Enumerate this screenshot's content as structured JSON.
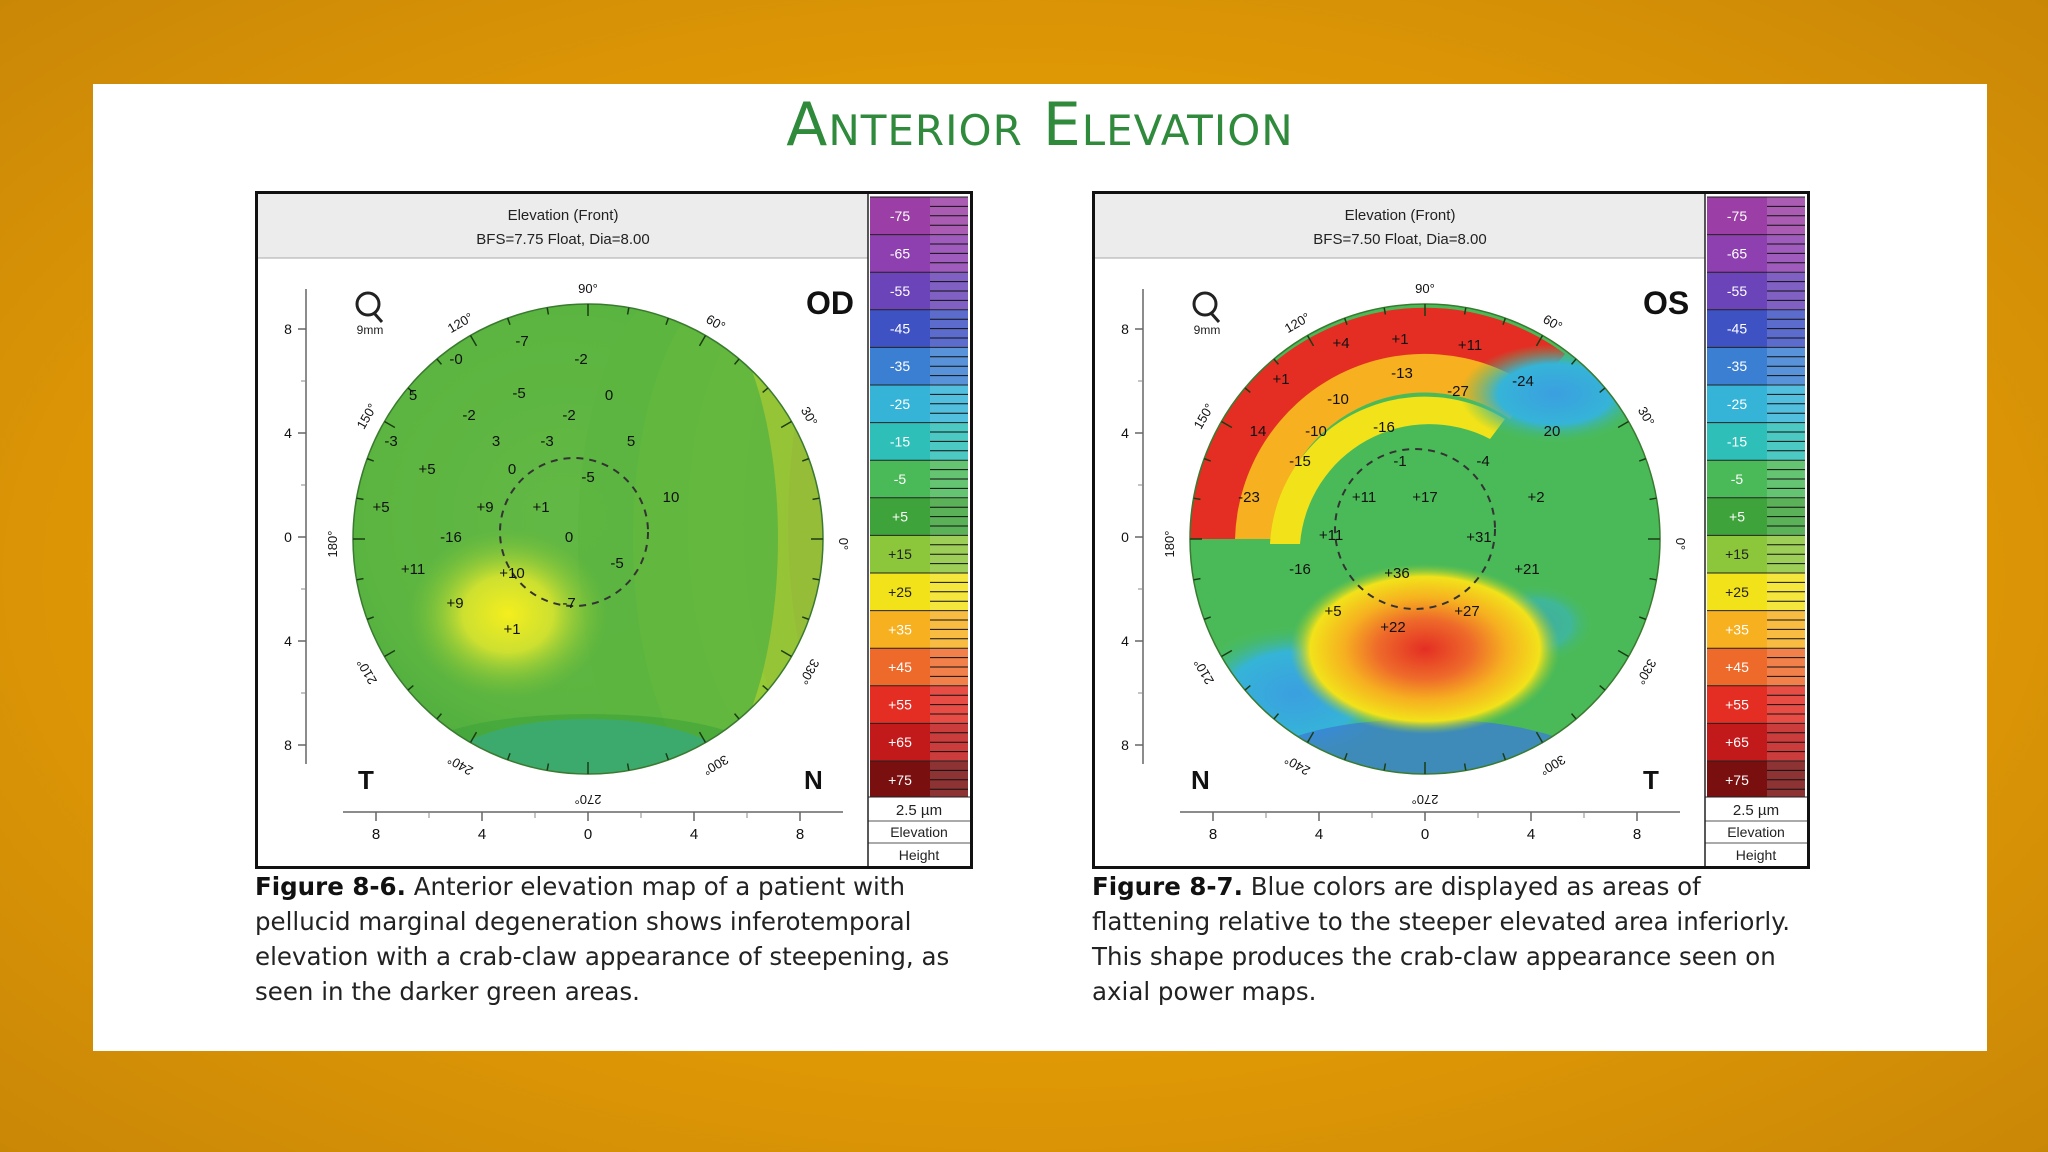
{
  "slide": {
    "title": "Anterior Elevation"
  },
  "scale": [
    "+75",
    "+65",
    "+55",
    "+45",
    "+35",
    "+25",
    "+15",
    "+5",
    "-5",
    "-15",
    "-25",
    "-35",
    "-45",
    "-55",
    "-65",
    "-75"
  ],
  "scale_colors": [
    "#9b3fa6",
    "#8e3fb0",
    "#6a44b8",
    "#3f52c4",
    "#3b7fd2",
    "#35b4d8",
    "#2ec0b8",
    "#4aba58",
    "#3ea33a",
    "#8cc63a",
    "#f2e21a",
    "#f6b020",
    "#ee6a2a",
    "#e42e24",
    "#c21a1a",
    "#7a0f10"
  ],
  "figures": [
    {
      "eye": "OD",
      "header_line1": "Elevation (Front)",
      "header_line2": "BFS=7.75 Float, Dia=8.00",
      "magnifier_label": "9mm",
      "left_side": "T",
      "right_side": "N",
      "scale_unit": "2.5 µm",
      "scale_footer1": "Elevation",
      "scale_footer2": "Height",
      "y_ticks": [
        "8",
        "4",
        "0",
        "4",
        "8"
      ],
      "x_ticks": [
        "8",
        "4",
        "0",
        "4",
        "8"
      ],
      "angles": [
        "90°",
        "60°",
        "30°",
        "0°",
        "330°",
        "300°",
        "270°",
        "240°",
        "210°",
        "180°",
        "150°",
        "120°"
      ],
      "values": [
        "-7",
        "-2",
        "-0",
        "5",
        "-5",
        "0",
        "-2",
        "-2",
        "-3",
        "3",
        "-3",
        "5",
        "+5",
        "0",
        "-5",
        "10",
        "+5",
        "+9",
        "+1",
        "-16",
        "0",
        "-5",
        "+11",
        "+10",
        "+9",
        "+1",
        "-7"
      ],
      "caption_label": "Figure 8-6.",
      "caption_text": " Anterior elevation map of a patient with pellucid marginal degeneration shows inferotemporal elevation with a crab-claw appearance of steepening, as seen in the darker green areas."
    },
    {
      "eye": "OS",
      "header_line1": "Elevation (Front)",
      "header_line2": "BFS=7.50 Float, Dia=8.00",
      "magnifier_label": "9mm",
      "left_side": "N",
      "right_side": "T",
      "scale_unit": "2.5 µm",
      "scale_footer1": "Elevation",
      "scale_footer2": "Height",
      "y_ticks": [
        "8",
        "4",
        "0",
        "4",
        "8"
      ],
      "x_ticks": [
        "8",
        "4",
        "0",
        "4",
        "8"
      ],
      "angles": [
        "90°",
        "60°",
        "30°",
        "0°",
        "330°",
        "300°",
        "270°",
        "240°",
        "210°",
        "180°",
        "150°",
        "120°"
      ],
      "values": [
        "+4",
        "+1",
        "+11",
        "+1",
        "-10",
        "-13",
        "-27",
        "-24",
        "14",
        "-10",
        "-16",
        "20",
        "-15",
        "-1",
        "-4",
        "-23",
        "+11",
        "+17",
        "+2",
        "+11",
        "+31",
        "-16",
        "+36",
        "+21",
        "+5",
        "+22",
        "+27"
      ],
      "caption_label": "Figure 8-7.",
      "caption_text": " Blue colors are displayed as areas of flattening relative to the steeper elevated area inferiorly. This shape produces the crab-claw appearance seen on axial power maps."
    }
  ]
}
